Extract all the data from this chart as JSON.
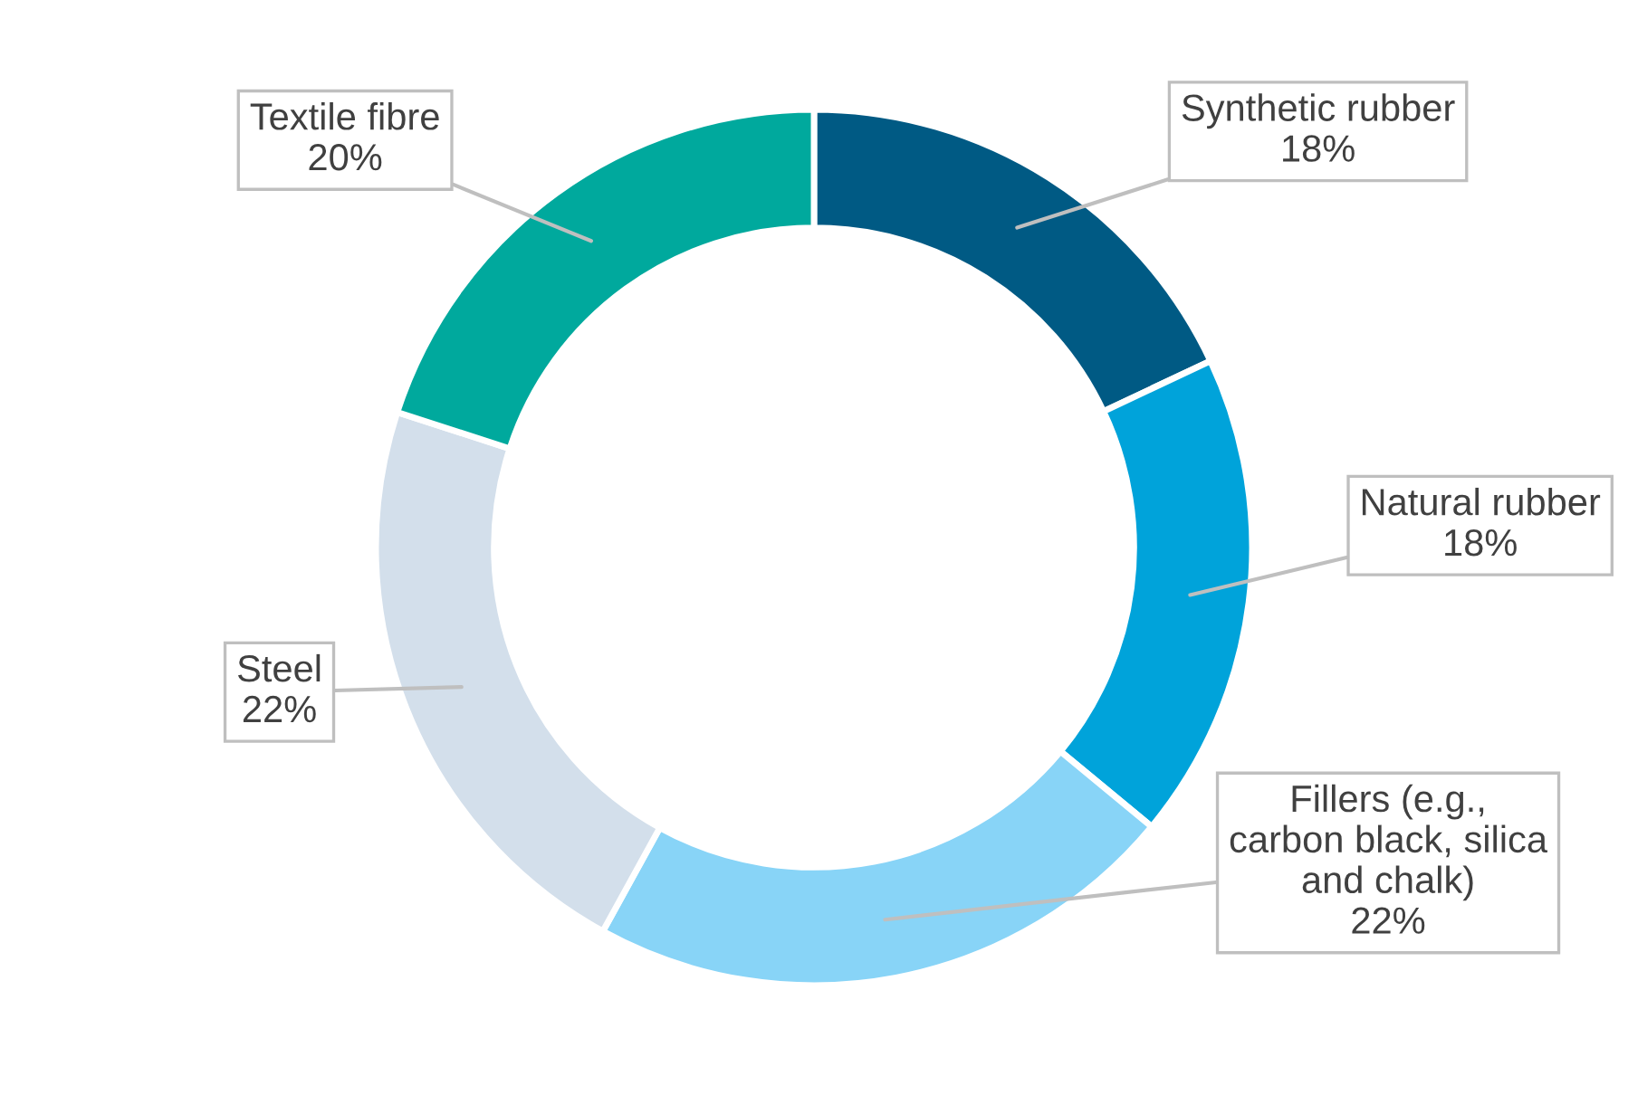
{
  "chart_data": {
    "type": "donut",
    "categories": [
      "Synthetic rubber",
      "Natural rubber",
      "Fillers (e.g., carbon black, silica and chalk)",
      "Steel",
      "Textile fibre"
    ],
    "values": [
      18,
      18,
      22,
      22,
      20
    ],
    "value_labels": [
      "18%",
      "18%",
      "22%",
      "22%",
      "20%"
    ],
    "colors": [
      "#005a84",
      "#00a3da",
      "#88d4f7",
      "#d3dfeb",
      "#00a99d"
    ],
    "legend": false
  }
}
